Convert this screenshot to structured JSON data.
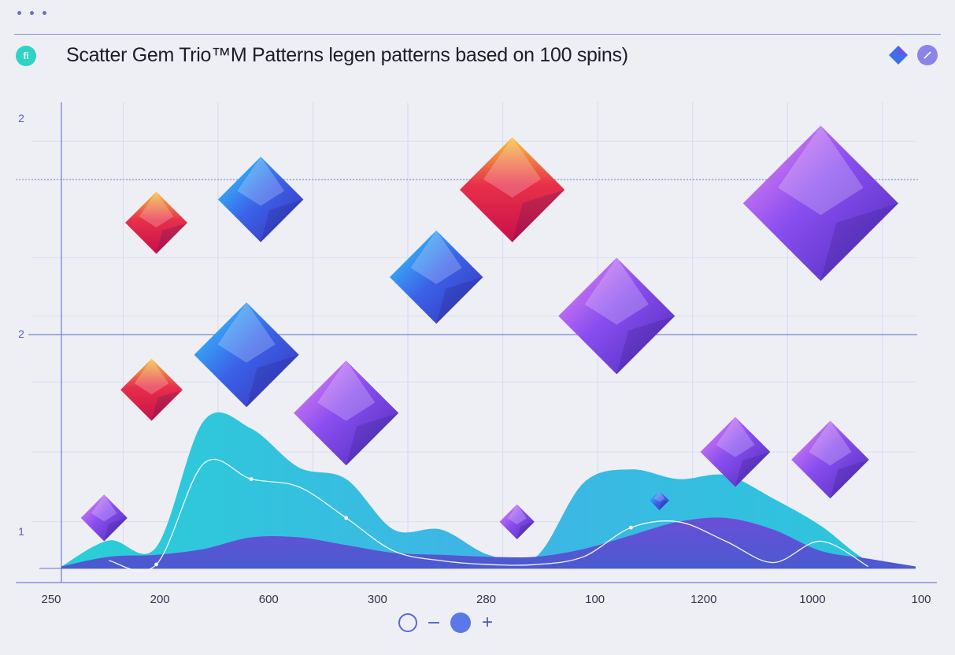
{
  "header": {
    "title": "Scatter Gem Trio™M Patterns legen patterns based on 100 spins)",
    "logo_text": "fi"
  },
  "icons": {
    "window": "window-dots-icon",
    "logo": "app-logo-icon",
    "header_gem": "gem-icon",
    "header_edit": "pencil-icon",
    "refresh": "refresh-icon",
    "zoom_out": "minus-icon",
    "record": "disc-icon",
    "zoom_in": "plus-icon"
  },
  "controls": {
    "zoom_in_label": "+"
  },
  "colors": {
    "area_front": "#3cc4da",
    "area_back": "#5a4fd0",
    "gem_blue": "#3a6ee8",
    "gem_purple": "#8a4ef0",
    "gem_red": "#e8304a",
    "gem_gold": "#f5b23a",
    "axis": "#8a8fd8"
  },
  "chart_data": {
    "type": "area",
    "title": "Scatter Gem Trio™M Patterns legen patterns based on 100 spins)",
    "x_tick_labels": [
      "250",
      "200",
      "600",
      "300",
      "280",
      "100",
      "1200",
      "1000",
      "100"
    ],
    "y_tick_labels": [
      "2",
      "2",
      "1"
    ],
    "series": [
      {
        "x": [
          0,
          0.5,
          1,
          1.5,
          2,
          2.5,
          3,
          3.5,
          4,
          4.5,
          5,
          5.5,
          6,
          6.5,
          7,
          7.5,
          8,
          8.5,
          9
        ],
        "values": [
          0.05,
          0.72,
          0.55,
          3.8,
          3.6,
          2.6,
          2.3,
          1.0,
          1.0,
          0.35,
          0.3,
          2.2,
          2.55,
          2.3,
          2.4,
          1.8,
          1.1,
          0.2,
          0.05
        ]
      },
      {
        "x": [
          0,
          0.5,
          1,
          1.5,
          2,
          2.5,
          3,
          3.5,
          4,
          4.5,
          5,
          5.5,
          6,
          6.5,
          7,
          7.5,
          8,
          8.5,
          9
        ],
        "values": [
          0.05,
          0.3,
          0.35,
          0.5,
          0.8,
          0.8,
          0.6,
          0.4,
          0.35,
          0.3,
          0.3,
          0.5,
          0.85,
          1.2,
          1.3,
          1.0,
          0.45,
          0.25,
          0.05
        ]
      },
      {
        "x": [
          0.5,
          1,
          1.5,
          2,
          2.5,
          3,
          3.5,
          4,
          4.5,
          5,
          5.5,
          6,
          6.5,
          7,
          7.5,
          8,
          8.5
        ],
        "values": [
          0.2,
          0.1,
          2.7,
          2.3,
          2.1,
          1.3,
          0.45,
          0.2,
          0.1,
          0.1,
          0.3,
          1.05,
          1.2,
          0.7,
          0.15,
          0.7,
          0.05
        ]
      }
    ],
    "gems": [
      {
        "x": 0.45,
        "y": 1.3,
        "size": 0.6,
        "color": "purple"
      },
      {
        "x": 0.95,
        "y": 4.6,
        "size": 0.8,
        "color": "red"
      },
      {
        "x": 1.0,
        "y": 8.9,
        "size": 0.8,
        "color": "red"
      },
      {
        "x": 1.95,
        "y": 5.5,
        "size": 1.35,
        "color": "blue"
      },
      {
        "x": 2.1,
        "y": 9.5,
        "size": 1.1,
        "color": "blue"
      },
      {
        "x": 3.0,
        "y": 4.0,
        "size": 1.35,
        "color": "purple"
      },
      {
        "x": 3.95,
        "y": 7.5,
        "size": 1.2,
        "color": "blue"
      },
      {
        "x": 4.75,
        "y": 9.75,
        "size": 1.35,
        "color": "red"
      },
      {
        "x": 4.8,
        "y": 1.2,
        "size": 0.45,
        "color": "purple"
      },
      {
        "x": 5.85,
        "y": 6.5,
        "size": 1.5,
        "color": "purple"
      },
      {
        "x": 6.3,
        "y": 1.75,
        "size": 0.25,
        "color": "blue"
      },
      {
        "x": 7.1,
        "y": 3.0,
        "size": 0.9,
        "color": "purple"
      },
      {
        "x": 8.0,
        "y": 9.4,
        "size": 2.0,
        "color": "purple"
      },
      {
        "x": 8.1,
        "y": 2.8,
        "size": 1.0,
        "color": "purple"
      }
    ],
    "xlim": [
      0,
      9
    ],
    "ylim": [
      0,
      12
    ],
    "grid": true,
    "legend": "none"
  }
}
